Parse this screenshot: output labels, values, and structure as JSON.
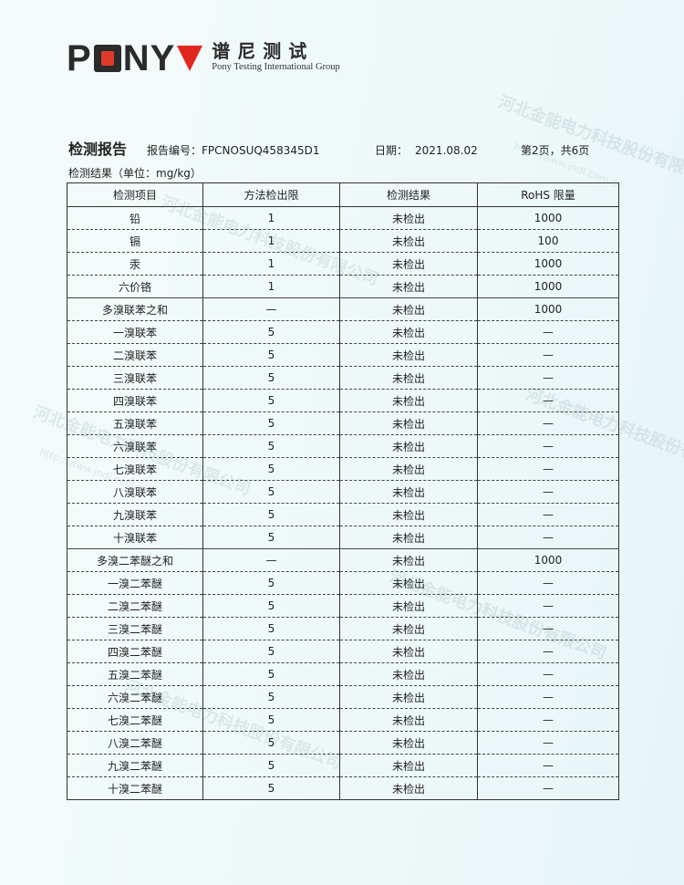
{
  "logo": {
    "word_p": "P",
    "word_ny": "NY",
    "cn": "谱尼测试",
    "en": "Pony Testing International Group"
  },
  "header": {
    "title": "检测报告",
    "report_no": "报告编号：FPCNOSUQ458345D1",
    "date_label": "日期：",
    "date": "2021.08.02",
    "page": "第2页，共6页"
  },
  "unit_label": "检测结果（单位：mg/kg）",
  "table": {
    "columns": [
      "检测项目",
      "方法检出限",
      "检测结果",
      "RoHS 限量"
    ],
    "rows": [
      [
        "铅",
        "1",
        "未检出",
        "1000"
      ],
      [
        "镉",
        "1",
        "未检出",
        "100"
      ],
      [
        "汞",
        "1",
        "未检出",
        "1000"
      ],
      [
        "六价铬",
        "1",
        "未检出",
        "1000"
      ],
      [
        "多溴联苯之和",
        "—",
        "未检出",
        "1000"
      ],
      [
        "一溴联苯",
        "5",
        "未检出",
        "—"
      ],
      [
        "二溴联苯",
        "5",
        "未检出",
        "—"
      ],
      [
        "三溴联苯",
        "5",
        "未检出",
        "—"
      ],
      [
        "四溴联苯",
        "5",
        "未检出",
        "—"
      ],
      [
        "五溴联苯",
        "5",
        "未检出",
        "—"
      ],
      [
        "六溴联苯",
        "5",
        "未检出",
        "—"
      ],
      [
        "七溴联苯",
        "5",
        "未检出",
        "—"
      ],
      [
        "八溴联苯",
        "5",
        "未检出",
        "—"
      ],
      [
        "九溴联苯",
        "5",
        "未检出",
        "—"
      ],
      [
        "十溴联苯",
        "5",
        "未检出",
        "—"
      ],
      [
        "多溴二苯醚之和",
        "—",
        "未检出",
        "1000"
      ],
      [
        "一溴二苯醚",
        "5",
        "未检出",
        "—"
      ],
      [
        "二溴二苯醚",
        "5",
        "未检出",
        "—"
      ],
      [
        "三溴二苯醚",
        "5",
        "未检出",
        "—"
      ],
      [
        "四溴二苯醚",
        "5",
        "未检出",
        "—"
      ],
      [
        "五溴二苯醚",
        "5",
        "未检出",
        "—"
      ],
      [
        "六溴二苯醚",
        "5",
        "未检出",
        "—"
      ],
      [
        "七溴二苯醚",
        "5",
        "未检出",
        "—"
      ],
      [
        "八溴二苯醚",
        "5",
        "未检出",
        "—"
      ],
      [
        "九溴二苯醚",
        "5",
        "未检出",
        "—"
      ],
      [
        "十溴二苯醚",
        "5",
        "未检出",
        "—"
      ]
    ]
  },
  "watermark": {
    "company": "河北金能电力科技股份有限公司",
    "url": "http://www.jndl.com.cn"
  }
}
